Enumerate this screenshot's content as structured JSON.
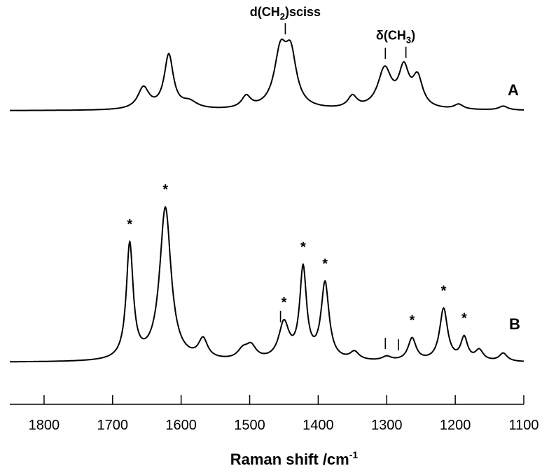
{
  "chart_data": {
    "type": "line",
    "title": "",
    "xlabel": "Raman shift /cm",
    "xlabel_sup": "-1",
    "ylabel": "",
    "xlim": [
      1850,
      1100
    ],
    "x_reversed": true,
    "x_ticks": [
      1800,
      1700,
      1600,
      1500,
      1400,
      1300,
      1200,
      1100
    ],
    "x_tick_labels": [
      "1800",
      "1700",
      "1600",
      "1500",
      "1400",
      "1300",
      "1200",
      "1100"
    ],
    "grid": false,
    "series": [
      {
        "name": "A",
        "baseline": 0.0,
        "peaks": [
          {
            "x": 1655,
            "h": 0.22,
            "w": 10
          },
          {
            "x": 1618,
            "h": 0.55,
            "w": 8
          },
          {
            "x": 1588,
            "h": 0.07,
            "w": 14
          },
          {
            "x": 1505,
            "h": 0.12,
            "w": 8
          },
          {
            "x": 1455,
            "h": 0.55,
            "w": 11
          },
          {
            "x": 1440,
            "h": 0.5,
            "w": 10
          },
          {
            "x": 1350,
            "h": 0.12,
            "w": 8
          },
          {
            "x": 1303,
            "h": 0.4,
            "w": 12
          },
          {
            "x": 1275,
            "h": 0.38,
            "w": 9
          },
          {
            "x": 1255,
            "h": 0.3,
            "w": 9
          },
          {
            "x": 1195,
            "h": 0.05,
            "w": 8
          },
          {
            "x": 1130,
            "h": 0.04,
            "w": 8
          }
        ]
      },
      {
        "name": "B",
        "baseline": 0.0,
        "peaks": [
          {
            "x": 1675,
            "h": 1.43,
            "w": 6
          },
          {
            "x": 1623,
            "h": 1.9,
            "w": 10
          },
          {
            "x": 1568,
            "h": 0.24,
            "w": 8
          },
          {
            "x": 1510,
            "h": 0.11,
            "w": 9
          },
          {
            "x": 1498,
            "h": 0.16,
            "w": 9
          },
          {
            "x": 1450,
            "h": 0.45,
            "w": 9
          },
          {
            "x": 1422,
            "h": 1.12,
            "w": 6
          },
          {
            "x": 1390,
            "h": 0.95,
            "w": 7
          },
          {
            "x": 1347,
            "h": 0.1,
            "w": 8
          },
          {
            "x": 1300,
            "h": 0.05,
            "w": 8
          },
          {
            "x": 1263,
            "h": 0.28,
            "w": 7
          },
          {
            "x": 1217,
            "h": 0.65,
            "w": 7
          },
          {
            "x": 1187,
            "h": 0.28,
            "w": 6
          },
          {
            "x": 1165,
            "h": 0.13,
            "w": 7
          },
          {
            "x": 1130,
            "h": 0.1,
            "w": 7
          }
        ]
      }
    ],
    "annotations": [
      {
        "series": "A",
        "text_main": "d(CH",
        "text_sub": "2",
        "text_tail": ")sciss",
        "markers": [
          1448
        ]
      },
      {
        "series": "A",
        "text_main": "δ(CH",
        "text_sub": "3",
        "text_tail": ")",
        "markers": [
          1302,
          1272
        ]
      },
      {
        "series": "B",
        "markers": [
          1455,
          1302,
          1283
        ]
      }
    ],
    "starred_peaks_B": [
      1675,
      1623,
      1450,
      1422,
      1390,
      1263,
      1217,
      1187
    ]
  },
  "labels": {
    "spectrum_a": "A",
    "spectrum_b": "B",
    "star_symbol": "*"
  }
}
